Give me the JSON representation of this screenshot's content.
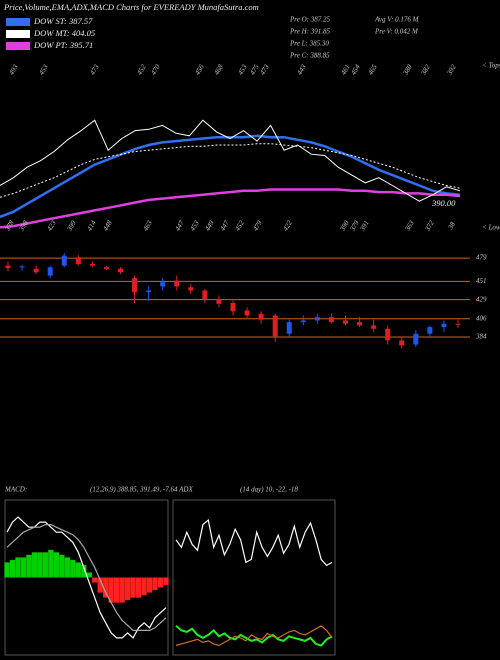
{
  "header": {
    "title": "Price,Volume,EMA,ADX,MACD Charts for EVEREADY MunafaSutra.com"
  },
  "stats": [
    "Pre O: 387.25",
    "Pre H: 391.85",
    "Pre L: 385.30",
    "Pre C: 388.85",
    "Avg V: 0.176  M",
    "Pre V: 0.042  M"
  ],
  "chart_data": [
    {
      "type": "line",
      "ylim": [
        370,
        500
      ],
      "color": "#ffffff",
      "values": [
        404,
        410,
        418,
        423,
        430,
        439,
        446,
        454,
        431,
        440,
        446,
        447,
        450,
        444,
        442,
        454,
        445,
        440,
        446,
        438,
        450,
        431,
        435,
        428,
        427,
        418,
        412,
        406,
        410,
        404,
        398,
        392,
        397,
        403,
        400
      ],
      "series": [
        {
          "name": "DOW ST: 387.57",
          "color": "#2f6ff0",
          "values": [
            380,
            384,
            390,
            396,
            402,
            408,
            414,
            420,
            424,
            428,
            432,
            435,
            437,
            438,
            439,
            440,
            441,
            441,
            441,
            442,
            441,
            441,
            439,
            437,
            434,
            430,
            426,
            421,
            416,
            412,
            408,
            404,
            400,
            398,
            397
          ]
        },
        {
          "name": "DOW MT: 404.05",
          "color": "#ffffff",
          "values": [
            395,
            398,
            402,
            406,
            410,
            415,
            420,
            424,
            426,
            428,
            430,
            431,
            432,
            433,
            434,
            434,
            435,
            435,
            435,
            436,
            436,
            435,
            434,
            433,
            431,
            429,
            427,
            424,
            421,
            418,
            414,
            410,
            407,
            404,
            402
          ]
        },
        {
          "name": "DOW PT: 395.71",
          "color": "#e040e0",
          "values": [
            372,
            373,
            375,
            377,
            379,
            381,
            383,
            385,
            387,
            389,
            391,
            393,
            394,
            395,
            396,
            397,
            398,
            399,
            400,
            400,
            401,
            401,
            401,
            401,
            401,
            401,
            400,
            400,
            399,
            399,
            398,
            398,
            397,
            397,
            396
          ]
        }
      ],
      "top_labels": [
        493,
        453,
        473,
        452,
        470,
        456,
        468,
        453,
        475,
        473,
        443,
        461,
        454,
        465,
        380,
        382,
        392
      ],
      "bottom_labels": [
        378,
        398,
        423,
        399,
        414,
        448,
        463,
        447,
        453,
        449,
        447,
        452,
        479,
        422,
        390,
        379,
        391,
        363,
        372,
        38
      ],
      "tops_label": "< Tops",
      "lows_label": "< Lows",
      "last_price": {
        "value": 390,
        "label": "390.00"
      }
    },
    {
      "type": "candlestick",
      "ylim": [
        360,
        490
      ],
      "up_color": "#2255ee",
      "down_color": "#e02020",
      "level_color": "#c8661e",
      "levels": [
        479,
        451,
        429,
        406,
        384
      ],
      "open": [
        470,
        468,
        466,
        458,
        470,
        480,
        472,
        468,
        466,
        455,
        438,
        445,
        452,
        444,
        440,
        430,
        425,
        416,
        412,
        410,
        388,
        402,
        404,
        408,
        404,
        402,
        398,
        394,
        380,
        375,
        388,
        396,
        400
      ],
      "high": [
        475,
        471,
        470,
        470,
        485,
        483,
        475,
        470,
        468,
        458,
        445,
        455,
        458,
        448,
        442,
        434,
        428,
        420,
        415,
        412,
        405,
        410,
        412,
        412,
        410,
        408,
        405,
        398,
        384,
        392,
        398,
        404,
        405
      ],
      "low": [
        463,
        464,
        460,
        455,
        468,
        470,
        468,
        465,
        460,
        425,
        428,
        440,
        440,
        436,
        425,
        420,
        410,
        406,
        400,
        378,
        385,
        398,
        400,
        400,
        398,
        396,
        390,
        375,
        370,
        372,
        384,
        390,
        395
      ],
      "close": [
        467,
        469,
        462,
        468,
        482,
        472,
        470,
        466,
        462,
        438,
        440,
        450,
        445,
        440,
        430,
        424,
        415,
        410,
        405,
        385,
        402,
        404,
        408,
        402,
        400,
        398,
        394,
        380,
        374,
        388,
        396,
        400,
        399
      ]
    },
    {
      "type": "macd",
      "title": "MACD:",
      "subtitle": "(12,26,9) 388.85, 391.49, -7.64 ADX",
      "ylim": [
        -15,
        15
      ],
      "pos_color": "#00d000",
      "neg_color": "#ff2020",
      "histogram": [
        3,
        3.5,
        4,
        4,
        4.5,
        5,
        5,
        5,
        5.5,
        5,
        4.5,
        4,
        3.5,
        3,
        2.5,
        1,
        -1,
        -3,
        -4,
        -5,
        -5,
        -5,
        -4.5,
        -4,
        -4,
        -3.5,
        -3,
        -2.5,
        -2,
        -1.5
      ],
      "series": [
        {
          "color": "#ffffff",
          "values": [
            9,
            11,
            12,
            11,
            10,
            10,
            11,
            11,
            10,
            9,
            9,
            8,
            7,
            5,
            2,
            -1,
            -4,
            -7,
            -9,
            -11,
            -12,
            -12,
            -11,
            -12,
            -10,
            -9,
            -10,
            -8,
            -7,
            -6
          ]
        },
        {
          "color": "#aaaaaa",
          "values": [
            6,
            7,
            8,
            9,
            9.5,
            10,
            10,
            10.5,
            10.5,
            10,
            9.5,
            9,
            8.5,
            7.5,
            6,
            4,
            2,
            -0.5,
            -3,
            -5,
            -7,
            -8.5,
            -9.5,
            -10.5,
            -10.5,
            -10.5,
            -10.5,
            -10,
            -9,
            -8
          ]
        }
      ]
    },
    {
      "type": "adx",
      "title": "(14 day) 10, -22, -18",
      "ylim": [
        0,
        100
      ],
      "series": [
        {
          "color": "#ffffff",
          "values": [
            75,
            70,
            80,
            72,
            68,
            85,
            88,
            70,
            78,
            65,
            72,
            82,
            75,
            60,
            62,
            80,
            70,
            64,
            70,
            78,
            66,
            72,
            84,
            70,
            80,
            86,
            75,
            62,
            58,
            60
          ]
        },
        {
          "color": "#22ee22",
          "values": [
            18,
            15,
            14,
            16,
            12,
            10,
            12,
            15,
            11,
            13,
            10,
            9,
            12,
            10,
            8,
            9,
            7,
            10,
            12,
            9,
            8,
            11,
            10,
            9,
            8,
            10,
            6,
            5,
            9,
            11
          ]
        },
        {
          "color": "#d07020",
          "values": [
            5,
            6,
            7,
            8,
            9,
            7,
            8,
            6,
            5,
            7,
            9,
            11,
            10,
            8,
            12,
            10,
            9,
            13,
            11,
            10,
            12,
            14,
            15,
            13,
            12,
            14,
            16,
            18,
            15,
            10
          ]
        }
      ]
    }
  ]
}
